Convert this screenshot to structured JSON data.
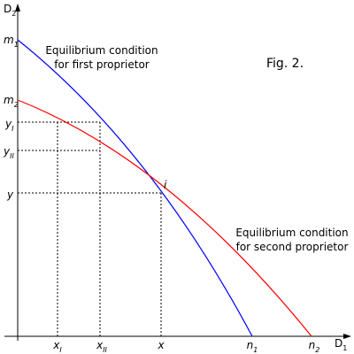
{
  "figure_label": "Fig. 2.",
  "axes": {
    "vertical": {
      "base": "D",
      "sub": "2"
    },
    "horizontal": {
      "base": "D",
      "sub": "1"
    }
  },
  "curve_labels": {
    "first": [
      "Equilibrium condition",
      "for first proprietor"
    ],
    "second": [
      "Equilibrium condition",
      "for second proprietor"
    ]
  },
  "points": {
    "m1": {
      "base": "m",
      "sub": "1"
    },
    "m2": {
      "base": "m",
      "sub": "2"
    },
    "yI": {
      "base": "y",
      "sub": "I"
    },
    "yII": {
      "base": "y",
      "sub": "II"
    },
    "y": {
      "base": "y"
    },
    "xI": {
      "base": "x",
      "sub": "I"
    },
    "xII": {
      "base": "x",
      "sub": "II"
    },
    "x": {
      "base": "x"
    },
    "n1": {
      "base": "n",
      "sub": "1"
    },
    "n2": {
      "base": "n",
      "sub": "2"
    },
    "i": {
      "base": "i"
    }
  }
}
